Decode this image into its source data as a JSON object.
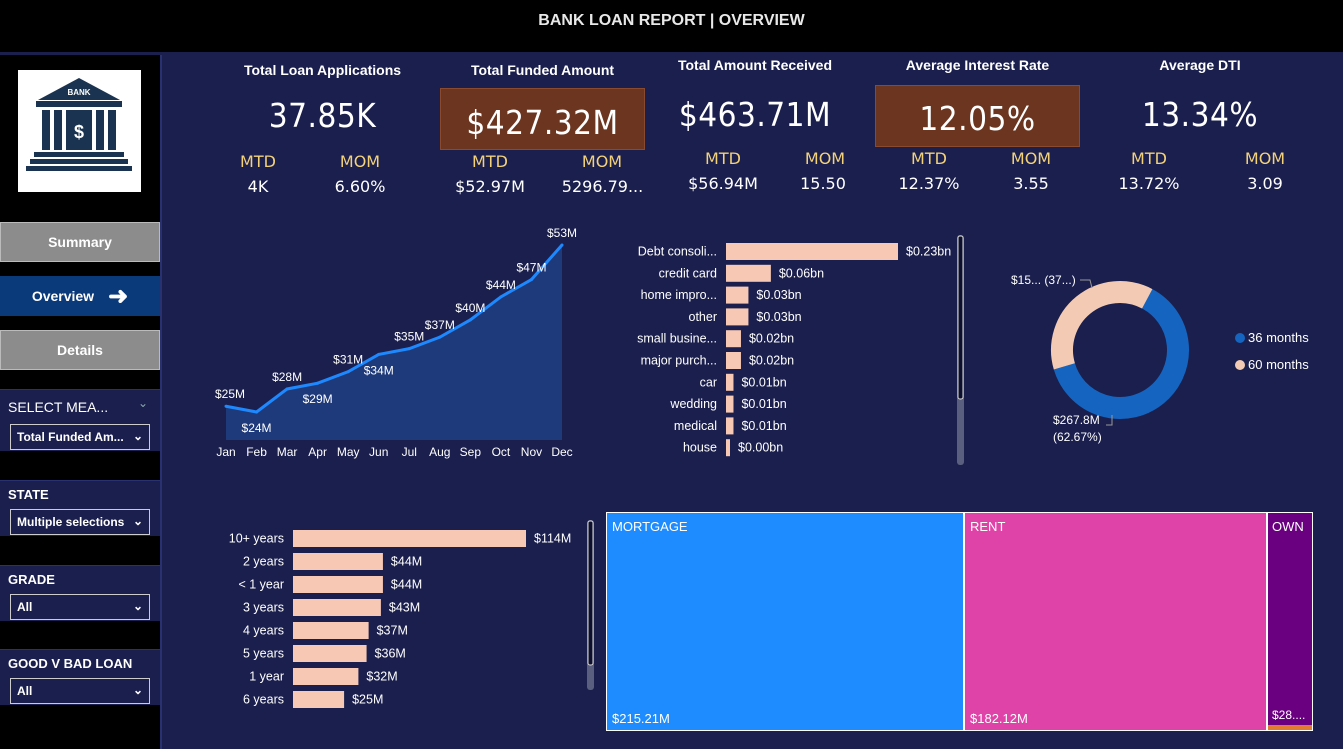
{
  "header": {
    "title": "BANK LOAN REPORT | OVERVIEW"
  },
  "logo": {
    "text": "BANK",
    "symbol": "$"
  },
  "nav": {
    "summary": "Summary",
    "overview": "Overview",
    "details": "Details"
  },
  "slicers": {
    "measure": {
      "title": "SELECT MEA...",
      "value": "Total Funded Am..."
    },
    "state": {
      "title": "STATE",
      "value": "Multiple selections"
    },
    "grade": {
      "title": "GRADE",
      "value": "All"
    },
    "good_bad": {
      "title": "GOOD V BAD LOAN",
      "value": "All"
    }
  },
  "kpis": [
    {
      "label": "Total Loan Applications",
      "value": "37.85K",
      "mtd_label": "MTD",
      "mtd": "4K",
      "mom_label": "MOM",
      "mom": "6.60%"
    },
    {
      "label": "Total Funded Amount",
      "value": "$427.32M",
      "mtd_label": "MTD",
      "mtd": "$52.97M",
      "mom_label": "MOM",
      "mom": "5296.79..."
    },
    {
      "label": "Total Amount Received",
      "value": "$463.71M",
      "mtd_label": "MTD",
      "mtd": "$56.94M",
      "mom_label": "MOM",
      "mom": "15.50"
    },
    {
      "label": "Average Interest Rate",
      "value": "12.05%",
      "mtd_label": "MTD",
      "mtd": "12.37%",
      "mom_label": "MOM",
      "mom": "3.55"
    },
    {
      "label": "Average DTI",
      "value": "13.34%",
      "mtd_label": "MTD",
      "mtd": "13.72%",
      "mom_label": "MOM",
      "mom": "3.09"
    }
  ],
  "colors": {
    "accent_blue": "#1e88ff",
    "bar_peach": "#f7c8b3",
    "area_fill": "#1f3a7a",
    "kpi_highlight": "#6b3520",
    "mortgage": "#1e8cff",
    "rent": "#e043a8",
    "own": "#6a0080",
    "donut_36": "#1565c0",
    "donut_60": "#f3cbb4"
  },
  "chart_data": [
    {
      "type": "area",
      "categories": [
        "Jan",
        "Feb",
        "Mar",
        "Apr",
        "May",
        "Jun",
        "Jul",
        "Aug",
        "Sep",
        "Oct",
        "Nov",
        "Dec"
      ],
      "values": [
        25,
        24,
        28,
        29,
        31,
        34,
        35,
        37,
        40,
        44,
        47,
        53
      ],
      "labels": [
        "$25M",
        "$24M",
        "$28M",
        "$29M",
        "$31M",
        "$34M",
        "$35M",
        "$37M",
        "$40M",
        "$44M",
        "$47M",
        "$53M"
      ],
      "ylim": [
        0,
        55
      ]
    },
    {
      "type": "bar",
      "orientation": "horizontal",
      "categories": [
        "Debt consoli...",
        "credit card",
        "home impro...",
        "other",
        "small busine...",
        "major purch...",
        "car",
        "wedding",
        "medical",
        "house"
      ],
      "values": [
        0.23,
        0.06,
        0.03,
        0.03,
        0.02,
        0.02,
        0.01,
        0.01,
        0.01,
        0.004
      ],
      "labels": [
        "$0.23bn",
        "$0.06bn",
        "$0.03bn",
        "$0.03bn",
        "$0.02bn",
        "$0.02bn",
        "$0.01bn",
        "$0.01bn",
        "$0.01bn",
        "$0.00bn"
      ]
    },
    {
      "type": "pie",
      "categories": [
        "36 months",
        "60 months"
      ],
      "values": [
        62.67,
        37.33
      ],
      "labels": [
        "$267.8M\n(62.67%)",
        "$15... (37...)"
      ],
      "legend": "right"
    },
    {
      "type": "bar",
      "orientation": "horizontal",
      "categories": [
        "10+ years",
        "2 years",
        "< 1 year",
        "3 years",
        "4 years",
        "5 years",
        "1 year",
        "6 years"
      ],
      "values": [
        114,
        44,
        44,
        43,
        37,
        36,
        32,
        25
      ],
      "labels": [
        "$114M",
        "$44M",
        "$44M",
        "$43M",
        "$37M",
        "$36M",
        "$32M",
        "$25M"
      ]
    },
    {
      "type": "treemap",
      "categories": [
        "MORTGAGE",
        "RENT",
        "OWN"
      ],
      "values": [
        215.21,
        182.12,
        28.0
      ],
      "labels": [
        "$215.21M",
        "$182.12M",
        "$28...."
      ]
    }
  ]
}
